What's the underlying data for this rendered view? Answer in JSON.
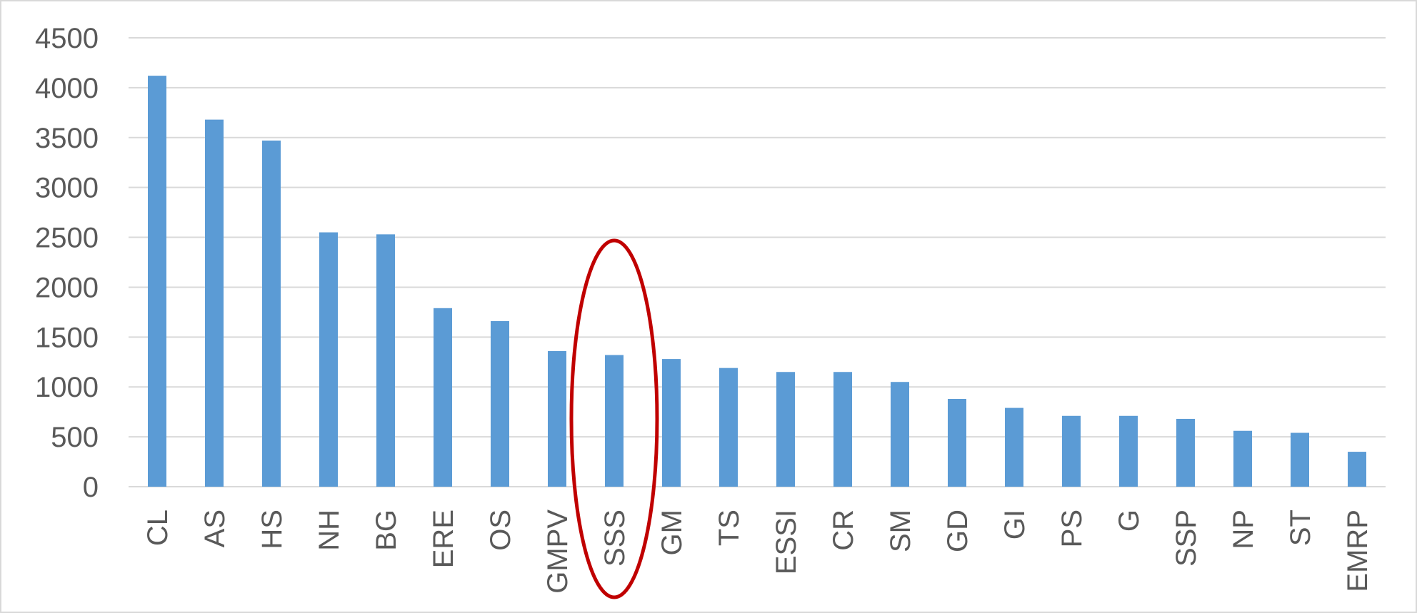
{
  "chart_data": {
    "type": "bar",
    "categories": [
      "CL",
      "AS",
      "HS",
      "NH",
      "BG",
      "ERE",
      "OS",
      "GMPV",
      "SSS",
      "GM",
      "TS",
      "ESSI",
      "CR",
      "SM",
      "GD",
      "GI",
      "PS",
      "G",
      "SSP",
      "NP",
      "ST",
      "EMRP"
    ],
    "series": [
      {
        "values": [
          4120,
          3680,
          3470,
          2550,
          2530,
          1790,
          1660,
          1360,
          1320,
          1280,
          1190,
          1150,
          1150,
          1050,
          880,
          790,
          710,
          710,
          680,
          560,
          540,
          350
        ],
        "color": "#5b9bd5"
      }
    ],
    "title": "",
    "xlabel": "",
    "ylabel": "",
    "ylim": [
      0,
      4500
    ],
    "yticks": [
      "0",
      "500",
      "1000",
      "1500",
      "2000",
      "2500",
      "3000",
      "3500",
      "4000",
      "4500"
    ],
    "grid": true,
    "legend": "none",
    "highlight": {
      "category": "SSS",
      "shape": "ellipse",
      "color": "#c00000"
    }
  }
}
